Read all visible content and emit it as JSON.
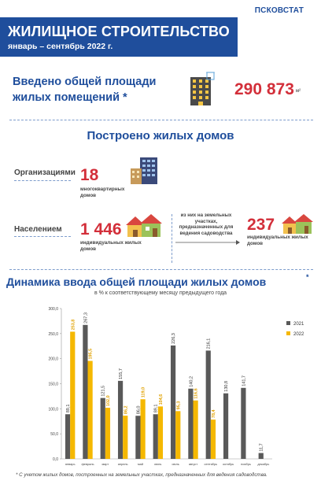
{
  "brand": "ПСКОВСТАТ",
  "header": {
    "title": "ЖИЛИЩНОЕ СТРОИТЕЛЬСТВО",
    "subtitle": "январь – сентябрь 2022 г."
  },
  "area": {
    "label": "Введено общей площади жилых помещений *",
    "value": "290 873",
    "unit": "м²"
  },
  "houses": {
    "title": "Построено жилых домов",
    "organizations": {
      "label": "Организациями",
      "value": "18",
      "desc": "многоквартирных домов"
    },
    "population": {
      "label": "Населением",
      "value": "1 446",
      "desc": "индивидуальных жилых домов",
      "note": "из них на земельных участках, предназначенных для ведения садоводства",
      "garden_value": "237",
      "garden_desc": "индивидуальных жилых домов"
    }
  },
  "colors": {
    "primary": "#1f4e9c",
    "accent": "#d32f3a",
    "series_2021": "#595959",
    "series_2022": "#f5b800"
  },
  "chart_data": {
    "type": "bar",
    "title": "Динамика ввода общей площади жилых домов",
    "title_mark": "*",
    "subtitle": "в % к соответствующему месяцу предыдущего года",
    "categories": [
      "январь",
      "февраль",
      "март",
      "апрель",
      "май",
      "июнь",
      "июль",
      "август",
      "сентябрь",
      "октябрь",
      "ноябрь",
      "декабрь"
    ],
    "series": [
      {
        "name": "2021",
        "color": "#595959",
        "values": [
          89.1,
          267.3,
          121.5,
          155.7,
          86.0,
          89.1,
          226.3,
          140.2,
          216.1,
          130.8,
          141.7,
          11.7
        ],
        "labels": [
          "89,1",
          "267,3",
          "121,5",
          "155,7",
          "86,0",
          "89,1",
          "226,3",
          "140,2",
          "216,1",
          "130,8",
          "141,7",
          "11,7"
        ]
      },
      {
        "name": "2022",
        "color": "#f5b800",
        "values": [
          253.8,
          195.5,
          102.0,
          86.2,
          119.0,
          104.6,
          95.3,
          116.6,
          78.4,
          null,
          null,
          null
        ],
        "labels": [
          "253,8",
          "195,5",
          "102,0",
          "86,2",
          "119,0",
          "104,6",
          "95,3",
          "116,6",
          "78,4",
          null,
          null,
          null
        ]
      }
    ],
    "ylim": [
      0,
      300
    ],
    "yticks": [
      "0,0",
      "50,0",
      "100,0",
      "150,0",
      "200,0",
      "250,0",
      "300,0"
    ],
    "grid": false,
    "legend": "right"
  },
  "footnote": "* С учетом жилых домов, построенных на земельных участках, предназначенных для ведения садоводства."
}
